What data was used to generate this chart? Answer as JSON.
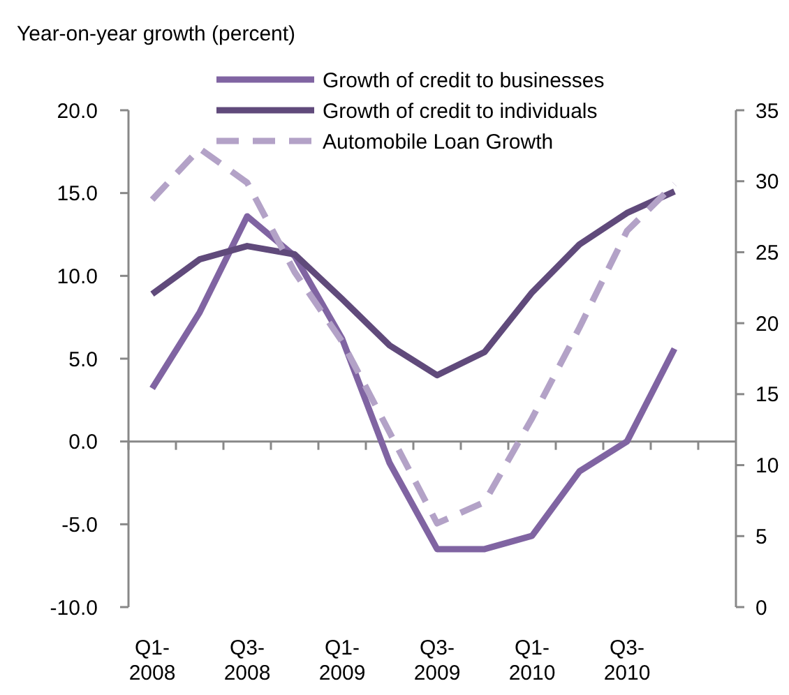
{
  "chart_data": {
    "type": "line",
    "ylabel": "Year-on-year growth (percent)",
    "categories": [
      "Q1-2008",
      null,
      "Q3-2008",
      null,
      "Q1-2009",
      null,
      "Q3-2009",
      null,
      "Q1-2010",
      null,
      "Q3-2010",
      null
    ],
    "series": [
      {
        "name": "Growth of credit to businesses",
        "color": "#8064a2",
        "values": [
          3.2,
          7.8,
          13.6,
          11.2,
          6.2,
          -1.3,
          -6.5,
          -6.5,
          -5.7,
          -1.8,
          0.0,
          5.6
        ]
      },
      {
        "name": "Growth of credit to individuals",
        "color": "#604a7b",
        "values": [
          8.9,
          11.0,
          11.8,
          11.3,
          8.6,
          5.8,
          4.0,
          5.4,
          9.0,
          11.9,
          13.8,
          15.1
        ]
      },
      {
        "name": "Automobile Loan Growth",
        "color": "#b3a2c7",
        "axis": "y2",
        "line_style": "dashed",
        "values": [
          28.7,
          32.3,
          29.9,
          23.6,
          18.7,
          12.3,
          5.9,
          7.4,
          13.3,
          19.7,
          26.5,
          29.8
        ]
      }
    ],
    "ylim": [
      -10,
      20
    ],
    "yticks": [
      {
        "value": -10,
        "label": "-10.0"
      },
      {
        "value": -5,
        "label": "-5.0"
      },
      {
        "value": 0,
        "label": "0.0"
      },
      {
        "value": 5,
        "label": "5.0"
      },
      {
        "value": 10,
        "label": "10.0"
      },
      {
        "value": 15,
        "label": "15.0"
      },
      {
        "value": 20,
        "label": "20.0"
      }
    ],
    "y2lim": [
      0,
      35
    ],
    "y2ticks": [
      0,
      5,
      10,
      15,
      20,
      25,
      30,
      35
    ],
    "legend": "top",
    "marker": "none",
    "line_style": "solid"
  }
}
